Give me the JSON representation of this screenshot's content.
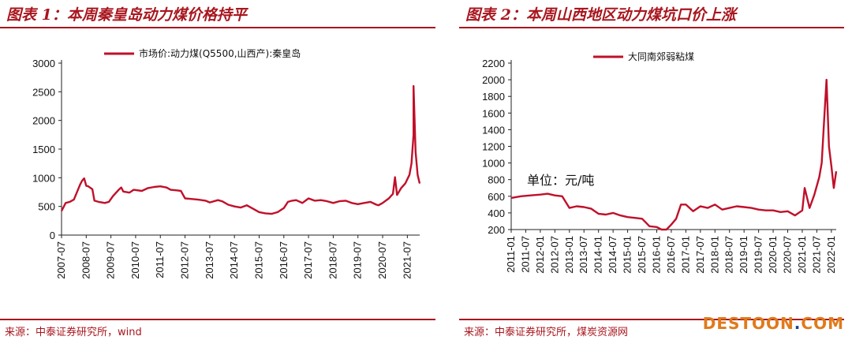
{
  "left": {
    "title": "图表 1：本周秦皇岛动力煤价格持平",
    "source": "来源：中泰证券研究所，wind"
  },
  "right": {
    "title": "图表 2：本周山西地区动力煤坑口价上涨",
    "source": "来源：中泰证券研究所，煤炭资源网"
  },
  "watermark": {
    "text_a": "DESTOON",
    "dot": ".",
    "text_b": "COM"
  },
  "colors": {
    "line": "#c0102a",
    "accent": "#a8161e"
  },
  "chart_data": [
    {
      "type": "line",
      "legend": "top",
      "ylim": [
        0,
        3000
      ],
      "yticks": [
        0,
        500,
        1000,
        1500,
        2000,
        2500,
        3000
      ],
      "xlim": [
        "2007-07",
        "2022-01"
      ],
      "xticks": [
        "2007-07",
        "2008-07",
        "2009-07",
        "2010-07",
        "2011-07",
        "2012-07",
        "2013-07",
        "2014-07",
        "2015-07",
        "2016-07",
        "2017-07",
        "2018-07",
        "2019-07",
        "2020-07",
        "2021-07"
      ],
      "series": [
        {
          "name": "市场价:动力煤(Q5500,山西产):秦皇岛",
          "x": [
            "2007-07",
            "2007-09",
            "2007-11",
            "2008-01",
            "2008-04",
            "2008-05",
            "2008-06",
            "2008-07",
            "2008-08",
            "2008-10",
            "2008-11",
            "2009-01",
            "2009-04",
            "2009-06",
            "2009-08",
            "2009-11",
            "2009-12",
            "2010-01",
            "2010-04",
            "2010-06",
            "2010-10",
            "2011-01",
            "2011-04",
            "2011-07",
            "2011-10",
            "2011-12",
            "2012-03",
            "2012-05",
            "2012-07",
            "2012-10",
            "2013-01",
            "2013-05",
            "2013-07",
            "2013-11",
            "2014-01",
            "2014-04",
            "2014-07",
            "2014-10",
            "2015-01",
            "2015-04",
            "2015-07",
            "2015-10",
            "2016-01",
            "2016-04",
            "2016-07",
            "2016-09",
            "2016-11",
            "2017-01",
            "2017-04",
            "2017-07",
            "2017-10",
            "2018-01",
            "2018-04",
            "2018-07",
            "2018-10",
            "2019-01",
            "2019-04",
            "2019-07",
            "2019-10",
            "2020-01",
            "2020-04",
            "2020-05",
            "2020-07",
            "2020-10",
            "2020-12",
            "2021-01",
            "2021-02",
            "2021-04",
            "2021-06",
            "2021-08",
            "2021-09",
            "2021-10",
            "2021-10",
            "2021-11",
            "2021-12",
            "2022-01"
          ],
          "values": [
            420,
            560,
            580,
            620,
            880,
            950,
            990,
            860,
            850,
            800,
            600,
            580,
            560,
            580,
            680,
            800,
            830,
            760,
            740,
            790,
            770,
            820,
            840,
            850,
            830,
            790,
            780,
            770,
            640,
            630,
            620,
            600,
            570,
            610,
            590,
            530,
            500,
            480,
            520,
            460,
            400,
            380,
            370,
            400,
            470,
            580,
            600,
            610,
            560,
            640,
            600,
            610,
            590,
            560,
            590,
            600,
            560,
            540,
            560,
            580,
            530,
            520,
            560,
            640,
            720,
            1010,
            700,
            820,
            900,
            1050,
            1250,
            1750,
            2600,
            1450,
            1050,
            900
          ]
        }
      ]
    },
    {
      "type": "line",
      "legend": "top",
      "ylim": [
        200,
        2200
      ],
      "yticks": [
        200,
        400,
        600,
        800,
        1000,
        1200,
        1400,
        1600,
        1800,
        2000,
        2200
      ],
      "xlim": [
        "2011-01",
        "2022-03"
      ],
      "xticks": [
        "2011-01",
        "2011-07",
        "2012-01",
        "2012-07",
        "2013-01",
        "2013-07",
        "2014-01",
        "2014-07",
        "2015-01",
        "2015-07",
        "2016-01",
        "2016-07",
        "2017-01",
        "2017-07",
        "2018-01",
        "2018-07",
        "2019-01",
        "2019-07",
        "2020-01",
        "2020-07",
        "2021-01",
        "2021-07",
        "2022-01"
      ],
      "unit_label": "单位：元/吨",
      "series": [
        {
          "name": "大同南郊弱粘煤",
          "x": [
            "2011-01",
            "2011-05",
            "2011-09",
            "2012-01",
            "2012-04",
            "2012-07",
            "2012-10",
            "2013-01",
            "2013-04",
            "2013-07",
            "2013-10",
            "2014-01",
            "2014-04",
            "2014-07",
            "2014-10",
            "2015-01",
            "2015-04",
            "2015-07",
            "2015-10",
            "2016-01",
            "2016-03",
            "2016-05",
            "2016-07",
            "2016-09",
            "2016-11",
            "2017-01",
            "2017-04",
            "2017-07",
            "2017-10",
            "2018-01",
            "2018-04",
            "2018-07",
            "2018-10",
            "2019-01",
            "2019-04",
            "2019-07",
            "2019-10",
            "2020-01",
            "2020-04",
            "2020-07",
            "2020-10",
            "2021-01",
            "2021-02",
            "2021-04",
            "2021-06",
            "2021-08",
            "2021-09",
            "2021-10",
            "2021-11",
            "2021-12",
            "2022-01",
            "2022-02",
            "2022-03"
          ],
          "values": [
            580,
            600,
            610,
            620,
            630,
            610,
            600,
            460,
            480,
            470,
            450,
            390,
            380,
            400,
            370,
            350,
            340,
            330,
            240,
            230,
            200,
            200,
            260,
            330,
            500,
            500,
            420,
            480,
            460,
            500,
            440,
            460,
            480,
            470,
            460,
            440,
            430,
            430,
            410,
            420,
            370,
            430,
            700,
            460,
            620,
            830,
            1000,
            1500,
            2000,
            1200,
            960,
            700,
            900
          ]
        }
      ]
    }
  ]
}
